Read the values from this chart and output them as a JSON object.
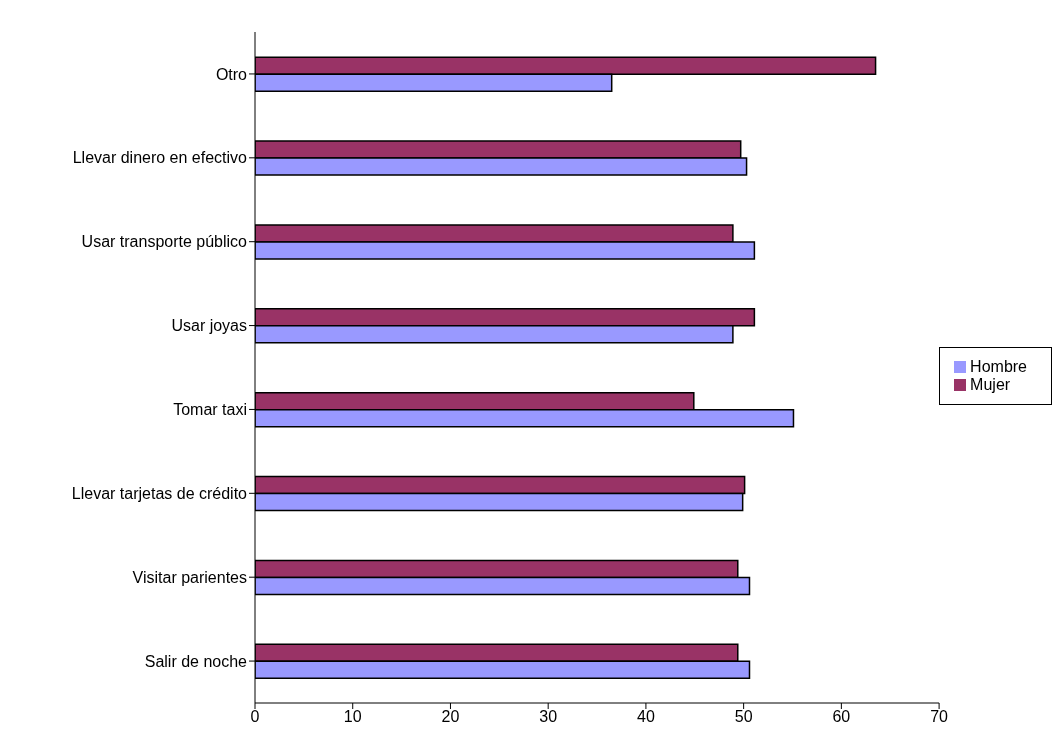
{
  "chart_data": {
    "type": "bar",
    "orientation": "horizontal",
    "categories": [
      "Otro",
      "Llevar dinero en efectivo",
      "Usar transporte público",
      "Usar joyas",
      "Tomar taxi",
      "Llevar tarjetas de crédito",
      "Visitar parientes",
      "Salir de noche"
    ],
    "series": [
      {
        "name": "Mujer",
        "color": "#993366",
        "values": [
          63.5,
          49.7,
          48.9,
          51.1,
          44.9,
          50.1,
          49.4,
          49.4
        ]
      },
      {
        "name": "Hombre",
        "color": "#9999ff",
        "values": [
          36.5,
          50.3,
          51.1,
          48.9,
          55.1,
          49.9,
          50.6,
          50.6
        ]
      }
    ],
    "xlim": [
      0,
      70
    ],
    "xticks": [
      0,
      10,
      20,
      30,
      40,
      50,
      60,
      70
    ],
    "grid": false,
    "legend": "right"
  }
}
